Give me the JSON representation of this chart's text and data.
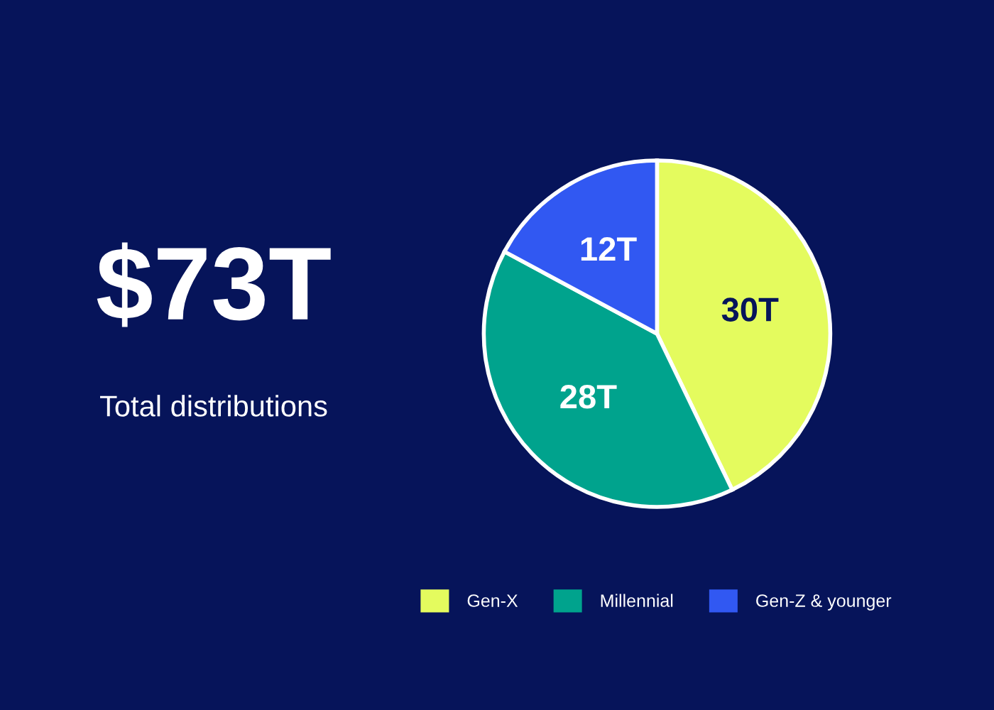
{
  "chart_data": {
    "type": "pie",
    "title": "$73T",
    "subtitle": "Total distributions",
    "categories": [
      "Gen-X",
      "Millennial",
      "Gen-Z & younger"
    ],
    "values": [
      30,
      28,
      12
    ],
    "value_labels": [
      "30T",
      "28T",
      "12T"
    ],
    "colors": [
      "#e4fb5e",
      "#00a38d",
      "#3158f2"
    ],
    "legend": "bottom"
  }
}
